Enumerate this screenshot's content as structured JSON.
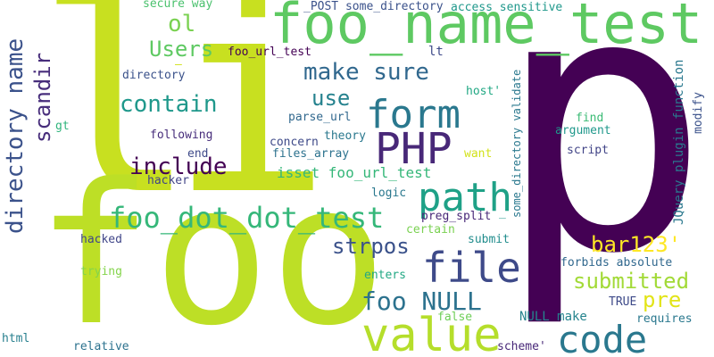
{
  "words": [
    {
      "text": "li",
      "color": "#c8e020"
    },
    {
      "text": "p",
      "color": "#440154"
    },
    {
      "text": "foo",
      "color": "#bddf26"
    },
    {
      "text": "foo_name_test",
      "color": "#5ec962"
    },
    {
      "text": "value",
      "color": "#b5de2b"
    },
    {
      "text": "code",
      "color": "#2a788e"
    },
    {
      "text": "path",
      "color": "#1fa187"
    },
    {
      "text": "file",
      "color": "#3e4a89"
    },
    {
      "text": "form",
      "color": "#2a788e"
    },
    {
      "text": "PHP",
      "color": "#482878"
    },
    {
      "text": "foo_dot_dot_test",
      "color": "#35b779"
    },
    {
      "text": "make sure",
      "color": "#31688e"
    },
    {
      "text": "foo NULL",
      "color": "#2c728e"
    },
    {
      "text": "submitted",
      "color": "#a2da37"
    },
    {
      "text": "include",
      "color": "#440154"
    },
    {
      "text": "contain",
      "color": "#1f988b"
    },
    {
      "text": "strpos",
      "color": "#3b528b"
    },
    {
      "text": "pre",
      "color": "#e2e418"
    },
    {
      "text": "bar123'",
      "color": "#fde725"
    },
    {
      "text": "Users",
      "color": "#5ec962"
    },
    {
      "text": "use",
      "color": "#26828e"
    },
    {
      "text": "ol",
      "color": "#7ad151"
    },
    {
      "text": "directory name",
      "color": "#3b528b"
    },
    {
      "text": "scandir",
      "color": "#472d7b"
    },
    {
      "text": "isset foo_url_test",
      "color": "#35b779"
    },
    {
      "text": "foo_url_test",
      "color": "#440154"
    },
    {
      "text": "_POST some_directory",
      "color": "#3b528b"
    },
    {
      "text": "secure way",
      "color": "#4ac16d"
    },
    {
      "text": "access sensitive",
      "color": "#1f988b"
    },
    {
      "text": "directory",
      "color": "#3b528b"
    },
    {
      "text": "lt",
      "color": "#3e4a89"
    },
    {
      "text": "parse_url",
      "color": "#31688e"
    },
    {
      "text": "theory",
      "color": "#2a788e"
    },
    {
      "text": "concern",
      "color": "#3e4a89"
    },
    {
      "text": "files_array",
      "color": "#2c728e"
    },
    {
      "text": "following",
      "color": "#472d7b"
    },
    {
      "text": "end",
      "color": "#3e4a89"
    },
    {
      "text": "hacker",
      "color": "#414487"
    },
    {
      "text": "logic",
      "color": "#2a788e"
    },
    {
      "text": "preg_split",
      "color": "#482878"
    },
    {
      "text": "certain",
      "color": "#7ad151"
    },
    {
      "text": "hacked",
      "color": "#404688"
    },
    {
      "text": "submit",
      "color": "#228d8d"
    },
    {
      "text": "trying",
      "color": "#84d44b"
    },
    {
      "text": "enters",
      "color": "#22a884"
    },
    {
      "text": "false",
      "color": "#6ece58"
    },
    {
      "text": "NULL make",
      "color": "#25848e"
    },
    {
      "text": "forbids absolute",
      "color": "#31688e"
    },
    {
      "text": "TRUE",
      "color": "#3e4a89"
    },
    {
      "text": "requires",
      "color": "#2a788e"
    },
    {
      "text": "html",
      "color": "#277f8e"
    },
    {
      "text": "relative",
      "color": "#2c728e"
    },
    {
      "text": "scheme'",
      "color": "#482878"
    },
    {
      "text": "find",
      "color": "#3bbb75"
    },
    {
      "text": "argument",
      "color": "#1f988b"
    },
    {
      "text": "script",
      "color": "#414487"
    },
    {
      "text": "host'",
      "color": "#22a884"
    },
    {
      "text": "want",
      "color": "#d2e21b"
    },
    {
      "text": "gt",
      "color": "#2fb47c"
    },
    {
      "text": "JQuery plugin function",
      "color": "#2a788e"
    },
    {
      "text": "some_directory validate",
      "color": "#2a788e"
    },
    {
      "text": "modify",
      "color": "#3b528b"
    },
    {
      "text": "_",
      "color": "#1f988b"
    },
    {
      "text": "—",
      "color": "#d2e21b"
    }
  ]
}
